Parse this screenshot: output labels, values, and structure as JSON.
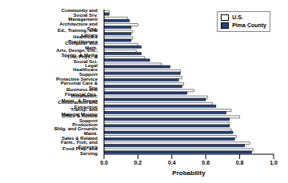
{
  "chart_data": {
    "type": "bar",
    "orientation": "horizontal",
    "categories": [
      "Community and Social Srv.",
      "Management",
      "Architecture and Eng.",
      "Ed., Training, and Library",
      "Healthcare Practitioners",
      "Computer and Math.",
      "Arts, Design, Ent., Sports, & Media",
      "Life, Phys., & Social Sci.",
      "Legal",
      "Healthcare Support",
      "Protective Service",
      "Personal Care & Srv.",
      "Business and Financial Ops.",
      "Installation, Maint., & Repair",
      "Construction and Extraction",
      "Transp. and Material Moving",
      "Office & Admin. Support",
      "Production",
      "Bldg. and Grounds Maint.",
      "Sales & Related",
      "Farm., Fish, and Forestry",
      "Food Prep. and Serving"
    ],
    "series": [
      {
        "name": "U.S.",
        "color": "#ffffff",
        "values": [
          0.03,
          0.14,
          0.2,
          0.17,
          0.17,
          0.2,
          0.19,
          0.24,
          0.34,
          0.45,
          0.46,
          0.47,
          0.53,
          0.61,
          0.64,
          0.75,
          0.8,
          0.74,
          0.75,
          0.78,
          0.86,
          0.88
        ]
      },
      {
        "name": "Pima County",
        "color": "#24427f",
        "values": [
          0.03,
          0.15,
          0.16,
          0.16,
          0.16,
          0.22,
          0.22,
          0.27,
          0.39,
          0.45,
          0.44,
          0.46,
          0.49,
          0.6,
          0.66,
          0.72,
          0.74,
          0.74,
          0.76,
          0.77,
          0.83,
          0.87
        ]
      }
    ],
    "x_label": "Probability",
    "xlim": [
      0,
      1
    ],
    "xticks": [
      {
        "value": 0,
        "label": "0.0"
      },
      0.2,
      0.4,
      0.6,
      0.8,
      {
        "value": 1,
        "label": "1.0"
      }
    ],
    "legend": "upper right",
    "grid": false
  }
}
